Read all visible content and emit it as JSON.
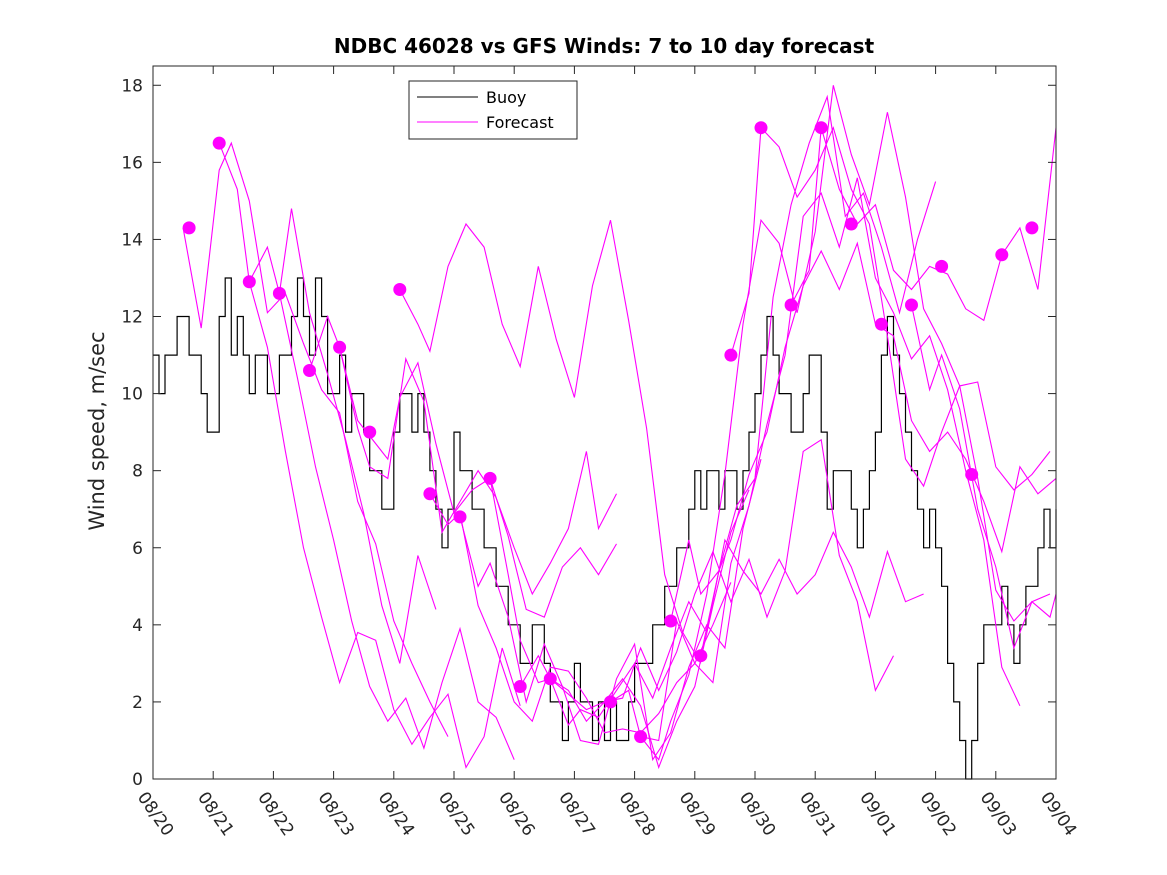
{
  "chart_data": {
    "type": "line",
    "title": "NDBC 46028 vs GFS Winds: 7 to 10 day forecast",
    "xlabel": "",
    "ylabel": "Wind speed, m/sec",
    "xlim": [
      0,
      15
    ],
    "ylim": [
      0,
      18.5
    ],
    "grid": false,
    "legend_position": "top-center",
    "x_tick_labels": [
      "08/20",
      "08/21",
      "08/22",
      "08/23",
      "08/24",
      "08/25",
      "08/26",
      "08/27",
      "08/28",
      "08/29",
      "08/30",
      "08/31",
      "09/01",
      "09/02",
      "09/03",
      "09/04"
    ],
    "y_ticks": [
      0,
      2,
      4,
      6,
      8,
      10,
      12,
      14,
      16,
      18
    ],
    "colors": {
      "buoy": "#000000",
      "forecast": "#ff00ff"
    },
    "legend": [
      {
        "name": "Buoy",
        "color": "#000000"
      },
      {
        "name": "Forecast",
        "color": "#ff00ff"
      }
    ],
    "buoy": {
      "name": "Buoy",
      "x": [
        0,
        0.1,
        0.2,
        0.3,
        0.4,
        0.5,
        0.6,
        0.7,
        0.8,
        0.9,
        1.0,
        1.1,
        1.2,
        1.3,
        1.4,
        1.5,
        1.6,
        1.7,
        1.8,
        1.9,
        2.0,
        2.1,
        2.2,
        2.3,
        2.4,
        2.5,
        2.6,
        2.7,
        2.8,
        2.9,
        3.0,
        3.1,
        3.2,
        3.3,
        3.4,
        3.5,
        3.6,
        3.7,
        3.8,
        3.9,
        4.0,
        4.1,
        4.2,
        4.3,
        4.4,
        4.5,
        4.6,
        4.7,
        4.8,
        4.9,
        5.0,
        5.1,
        5.2,
        5.3,
        5.4,
        5.5,
        5.6,
        5.7,
        5.8,
        5.9,
        6.0,
        6.1,
        6.2,
        6.3,
        6.4,
        6.5,
        6.6,
        6.7,
        6.8,
        6.9,
        7.0,
        7.1,
        7.2,
        7.3,
        7.4,
        7.5,
        7.6,
        7.7,
        7.8,
        7.9,
        8.0,
        8.1,
        8.2,
        8.3,
        8.4,
        8.5,
        8.6,
        8.7,
        8.8,
        8.9,
        9.0,
        9.1,
        9.2,
        9.3,
        9.4,
        9.5,
        9.6,
        9.7,
        9.8,
        9.9,
        10.0,
        10.1,
        10.2,
        10.3,
        10.4,
        10.5,
        10.6,
        10.7,
        10.8,
        10.9,
        11.0,
        11.1,
        11.2,
        11.3,
        11.4,
        11.5,
        11.6,
        11.7,
        11.8,
        11.9,
        12.0,
        12.1,
        12.2,
        12.3,
        12.4,
        12.5,
        12.6,
        12.7,
        12.8,
        12.9,
        13.0,
        13.1,
        13.2,
        13.3,
        13.4,
        13.5,
        13.6,
        13.7,
        13.8,
        13.9,
        14.0,
        14.1,
        14.2,
        14.3,
        14.4,
        14.5,
        14.6,
        14.7,
        14.8,
        14.9,
        15.0
      ],
      "values": [
        11,
        10,
        11,
        11,
        12,
        12,
        11,
        11,
        10,
        9,
        9,
        12,
        13,
        11,
        12,
        11,
        10,
        11,
        11,
        10,
        10,
        11,
        11,
        12,
        13,
        12,
        11,
        13,
        12,
        10,
        10,
        11,
        9,
        10,
        10,
        9,
        8,
        8,
        7,
        7,
        9,
        10,
        10,
        9,
        10,
        9,
        8,
        7,
        6,
        7,
        9,
        8,
        8,
        7,
        7,
        6,
        6,
        5,
        5,
        4,
        4,
        3,
        3,
        4,
        4,
        3,
        2,
        2,
        1,
        2,
        3,
        2,
        2,
        1,
        2,
        1,
        2,
        1,
        1,
        2,
        3,
        3,
        3,
        4,
        4,
        5,
        5,
        6,
        6,
        7,
        8,
        7,
        8,
        8,
        7,
        8,
        8,
        7,
        8,
        9,
        10,
        11,
        12,
        11,
        10,
        10,
        9,
        9,
        10,
        11,
        11,
        9,
        7,
        8,
        8,
        8,
        7,
        6,
        7,
        8,
        9,
        11,
        12,
        11,
        10,
        9,
        8,
        7,
        6,
        7,
        6,
        5,
        3,
        2,
        1,
        0,
        1,
        3,
        4,
        4,
        4,
        5,
        4,
        3,
        4,
        5,
        5,
        6,
        7,
        6,
        7
      ]
    },
    "forecast_series": [
      {
        "name": "Forecast",
        "x": [
          0.5,
          0.8,
          1.1,
          1.3,
          1.6,
          1.9,
          2.2,
          2.5,
          2.8,
          3.1,
          3.4,
          3.7,
          4.0,
          4.3,
          4.6,
          4.9
        ],
        "values": [
          14.3,
          11.7,
          15.8,
          16.5,
          15.0,
          12.1,
          12.6,
          11.3,
          10.1,
          9.5,
          7.2,
          6.1,
          4.1,
          3.0,
          2.0,
          1.1
        ]
      },
      {
        "name": "Forecast",
        "x": [
          1.1,
          1.4,
          1.6,
          1.9,
          2.2,
          2.5,
          2.8,
          3.1,
          3.4,
          3.7,
          4.0,
          4.3,
          4.6,
          4.9,
          5.2,
          5.5,
          5.8,
          6.1
        ],
        "values": [
          16.5,
          15.3,
          12.9,
          11.2,
          8.5,
          6.0,
          4.2,
          2.5,
          3.8,
          3.6,
          1.8,
          0.9,
          1.6,
          2.2,
          0.3,
          1.1,
          3.4,
          1.9
        ]
      },
      {
        "name": "Forecast",
        "x": [
          1.6,
          1.9,
          2.1,
          2.3,
          2.6,
          2.9,
          3.2,
          3.5,
          3.8,
          4.1,
          4.4,
          4.7
        ],
        "values": [
          12.9,
          13.8,
          12.6,
          14.8,
          12.1,
          10.5,
          8.8,
          6.9,
          4.5,
          3.0,
          5.8,
          4.4
        ]
      },
      {
        "name": "Forecast",
        "x": [
          2.1,
          2.4,
          2.7,
          3.0,
          3.3,
          3.6,
          3.9,
          4.2,
          4.5,
          4.8,
          5.1,
          5.4,
          5.7,
          6.0
        ],
        "values": [
          12.6,
          10.4,
          8.1,
          6.2,
          4.1,
          2.4,
          1.5,
          2.1,
          0.8,
          2.5,
          3.9,
          2.0,
          1.6,
          0.5
        ]
      },
      {
        "name": "Forecast",
        "x": [
          2.6,
          2.9,
          3.1,
          3.4,
          3.6,
          3.9,
          4.2,
          4.5,
          4.8,
          5.1,
          5.4,
          5.7,
          6.0,
          6.3,
          6.6,
          6.9,
          7.2,
          7.4,
          7.7
        ],
        "values": [
          10.6,
          12.0,
          11.2,
          9.1,
          8.1,
          7.8,
          10.9,
          9.8,
          6.4,
          7.2,
          8.0,
          7.3,
          6.0,
          4.8,
          5.6,
          6.5,
          8.5,
          6.5,
          7.4
        ]
      },
      {
        "name": "Forecast",
        "x": [
          3.1,
          3.4,
          3.6,
          3.9,
          4.1,
          4.4,
          4.7,
          5.0,
          5.3,
          5.6,
          5.9,
          6.2,
          6.5,
          6.8,
          7.1,
          7.4,
          7.7
        ],
        "values": [
          11.2,
          9.3,
          8.9,
          8.3,
          9.9,
          10.8,
          8.7,
          6.9,
          7.5,
          7.8,
          6.3,
          4.4,
          4.2,
          5.5,
          6.0,
          5.3,
          6.1
        ]
      },
      {
        "name": "Forecast",
        "x": [
          4.1,
          4.4,
          4.6,
          4.9,
          5.2,
          5.5,
          5.8,
          6.1,
          6.4,
          6.7,
          7.0,
          7.3,
          7.6,
          7.9,
          8.2,
          8.5,
          8.8,
          9.1
        ],
        "values": [
          12.7,
          11.8,
          11.1,
          13.3,
          14.4,
          13.8,
          11.8,
          10.7,
          13.3,
          11.4,
          9.9,
          12.8,
          14.5,
          11.9,
          9.1,
          5.3,
          3.8,
          3.0
        ]
      },
      {
        "name": "Forecast",
        "x": [
          4.6,
          4.9,
          5.1,
          5.4,
          5.7,
          6.0,
          6.3,
          6.6,
          6.9,
          7.2,
          7.5,
          7.8,
          8.1,
          8.4,
          8.7,
          9.0,
          9.3,
          9.6
        ],
        "values": [
          7.4,
          6.6,
          6.9,
          4.5,
          3.4,
          2.0,
          1.5,
          2.9,
          2.8,
          2.1,
          1.2,
          1.3,
          1.2,
          1.7,
          2.5,
          3.0,
          4.0,
          5.1
        ]
      },
      {
        "name": "Forecast",
        "x": [
          5.1,
          5.4,
          5.6,
          5.9,
          6.2,
          6.5,
          6.8,
          7.1,
          7.4,
          7.7,
          8.0,
          8.3,
          8.6,
          8.9,
          9.2,
          9.5,
          9.8,
          10.1
        ],
        "values": [
          6.8,
          5.0,
          5.6,
          4.2,
          2.0,
          3.5,
          2.4,
          1.0,
          0.9,
          2.6,
          3.5,
          0.5,
          1.2,
          2.9,
          4.0,
          3.4,
          6.5,
          8.3
        ]
      },
      {
        "name": "Forecast",
        "x": [
          5.6,
          5.9,
          6.1,
          6.4,
          6.6,
          6.9,
          7.2,
          7.5,
          7.8,
          8.1,
          8.4,
          8.7,
          9.0,
          9.3,
          9.6,
          9.9
        ],
        "values": [
          7.8,
          5.3,
          3.6,
          2.5,
          2.6,
          2.2,
          1.8,
          2.0,
          2.6,
          1.9,
          0.3,
          1.5,
          2.4,
          4.5,
          6.4,
          7.5
        ]
      },
      {
        "name": "Forecast",
        "x": [
          6.1,
          6.4,
          6.6,
          6.9,
          7.2,
          7.5,
          7.8,
          8.1,
          8.4,
          8.7,
          9.0,
          9.3,
          9.6,
          9.9,
          10.2,
          10.5,
          10.8,
          11.1,
          11.4,
          11.7,
          12.0,
          12.3
        ],
        "values": [
          2.4,
          3.2,
          2.6,
          2.3,
          1.5,
          2.0,
          2.1,
          3.4,
          2.3,
          3.3,
          4.8,
          5.9,
          4.6,
          5.7,
          4.2,
          5.4,
          8.5,
          8.8,
          5.8,
          4.6,
          2.3,
          3.2
        ]
      },
      {
        "name": "Forecast",
        "x": [
          6.6,
          6.9,
          7.1,
          7.4,
          7.7,
          8.0,
          8.3,
          8.6,
          8.9,
          9.2,
          9.5,
          9.8,
          10.1,
          10.4,
          10.7,
          11.0,
          11.3,
          11.6,
          11.9,
          12.2,
          12.5,
          12.8
        ],
        "values": [
          2.6,
          1.4,
          1.8,
          1.6,
          2.3,
          3.0,
          2.1,
          3.4,
          4.6,
          3.8,
          6.2,
          5.4,
          4.8,
          5.7,
          4.8,
          5.3,
          6.4,
          5.5,
          4.2,
          5.9,
          4.6,
          4.8
        ]
      },
      {
        "name": "Forecast",
        "x": [
          7.6,
          7.9,
          8.1,
          8.4,
          8.7,
          9.0,
          9.3,
          9.6,
          9.9,
          10.2,
          10.5,
          10.8,
          11.1,
          11.4,
          11.7,
          12.0,
          12.3,
          12.6,
          12.9,
          13.2,
          13.5,
          13.8,
          14.1,
          14.4
        ],
        "values": [
          2.0,
          2.3,
          1.1,
          1.0,
          4.1,
          3.0,
          2.5,
          5.6,
          7.1,
          9.2,
          11.0,
          14.6,
          15.2,
          13.8,
          15.6,
          13.0,
          12.1,
          10.9,
          11.5,
          10.1,
          8.0,
          6.2,
          2.9,
          1.9
        ]
      },
      {
        "name": "Forecast",
        "x": [
          8.1,
          8.4,
          8.6,
          8.9,
          9.2,
          9.5,
          9.8,
          10.1,
          10.4,
          10.7,
          11.0,
          11.3,
          11.6,
          11.9,
          12.2,
          12.5,
          12.8,
          13.1,
          13.4,
          13.7,
          14.0,
          14.3,
          14.6,
          14.9
        ],
        "values": [
          1.1,
          0.5,
          1.5,
          2.7,
          4.8,
          7.9,
          11.8,
          14.5,
          13.9,
          12.1,
          14.2,
          18.0,
          16.2,
          14.9,
          17.3,
          15.1,
          12.2,
          11.3,
          10.2,
          7.8,
          4.9,
          4.1,
          4.6,
          4.8
        ]
      },
      {
        "name": "Forecast",
        "x": [
          8.6,
          8.9,
          9.1,
          9.4,
          9.7,
          10.0,
          10.3,
          10.6,
          10.9,
          11.2,
          11.5,
          11.8,
          12.1,
          12.4,
          12.7,
          13.0
        ],
        "values": [
          4.1,
          6.2,
          4.8,
          5.4,
          7.1,
          7.8,
          12.5,
          14.9,
          16.5,
          17.7,
          14.6,
          15.2,
          13.8,
          12.1,
          14.0,
          15.5
        ]
      },
      {
        "name": "Forecast",
        "x": [
          9.1,
          9.4,
          9.6,
          9.9,
          10.2,
          10.5,
          10.8,
          11.1,
          11.4,
          11.7,
          12.0,
          12.3,
          12.6,
          12.9,
          13.2,
          13.5,
          13.8,
          14.1,
          14.4,
          14.7,
          15.0
        ],
        "values": [
          3.2,
          5.4,
          6.2,
          7.9,
          9.0,
          11.2,
          12.8,
          13.7,
          12.7,
          13.9,
          11.8,
          11.5,
          9.3,
          8.5,
          9.0,
          8.3,
          7.2,
          5.9,
          8.1,
          7.4,
          7.8
        ]
      },
      {
        "name": "Forecast",
        "x": [
          9.6,
          9.9,
          10.1,
          10.4,
          10.7,
          11.0,
          11.3,
          11.6,
          11.9,
          12.2,
          12.5,
          12.8,
          13.1,
          13.4,
          13.7,
          14.0,
          14.3,
          14.6,
          14.9
        ],
        "values": [
          11.0,
          12.6,
          16.9,
          16.4,
          15.1,
          15.8,
          16.9,
          15.3,
          14.4,
          11.5,
          8.3,
          7.6,
          9.0,
          10.2,
          10.3,
          8.1,
          7.5,
          7.9,
          8.5
        ]
      },
      {
        "name": "Forecast",
        "x": [
          10.6,
          10.9,
          11.1,
          11.4,
          11.7,
          12.0,
          12.3,
          12.6,
          12.9,
          13.2,
          13.5,
          13.8,
          14.1,
          14.4,
          14.7,
          15.0
        ],
        "values": [
          12.3,
          13.2,
          16.9,
          15.3,
          14.4,
          14.9,
          13.2,
          12.7,
          13.3,
          13.1,
          12.2,
          11.9,
          13.6,
          14.3,
          12.7,
          16.9
        ]
      },
      {
        "name": "Forecast",
        "x": [
          12.6,
          12.9,
          13.1,
          13.4,
          13.7,
          14.0,
          14.3,
          14.6,
          14.9,
          15.0
        ],
        "values": [
          12.3,
          10.1,
          11.0,
          9.6,
          7.0,
          5.5,
          3.4,
          4.6,
          4.2,
          4.8
        ]
      }
    ],
    "forecast_markers": {
      "x": [
        0.6,
        1.1,
        1.6,
        2.1,
        2.6,
        3.1,
        3.6,
        4.1,
        4.6,
        5.1,
        5.6,
        6.1,
        6.6,
        7.6,
        8.1,
        8.6,
        9.1,
        9.6,
        10.1,
        10.6,
        11.1,
        11.6,
        12.1,
        12.6,
        13.1,
        13.6,
        14.1,
        14.6
      ],
      "values": [
        14.3,
        16.5,
        12.9,
        12.6,
        10.6,
        11.2,
        9.0,
        12.7,
        7.4,
        6.8,
        7.8,
        2.4,
        2.6,
        2.0,
        1.1,
        4.1,
        3.2,
        11.0,
        16.9,
        12.3,
        16.9,
        14.4,
        11.8,
        12.3,
        13.3,
        7.9,
        13.6,
        14.3
      ]
    }
  }
}
